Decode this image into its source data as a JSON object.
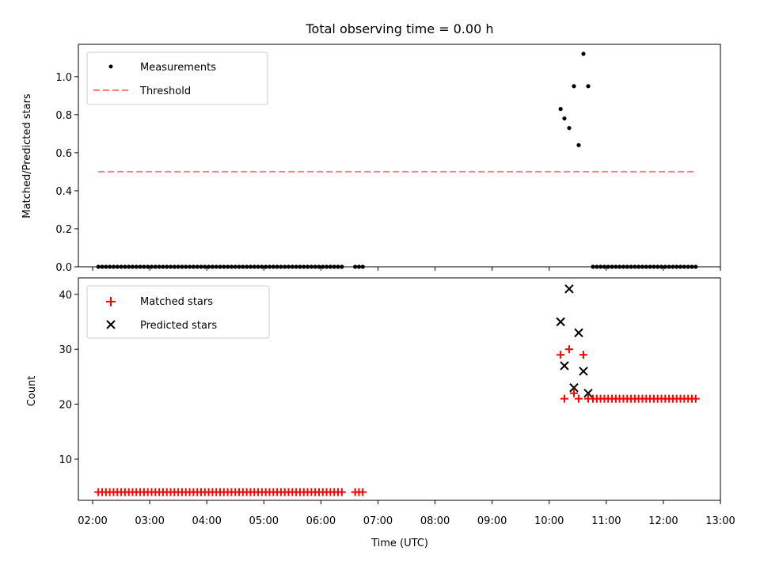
{
  "chart_data": [
    {
      "type": "scatter",
      "title": "Total observing time = 0.00 h",
      "xlabel": "",
      "ylabel": "Matched/Predicted stars",
      "xlim": [
        "01:45",
        "13:00"
      ],
      "ylim": [
        0.0,
        1.17
      ],
      "y_ticks": [
        "0.0",
        "0.2",
        "0.4",
        "0.6",
        "0.8",
        "1.0"
      ],
      "legend_position": "top-left",
      "series": [
        {
          "name": "Measurements",
          "marker": "dot",
          "color": "#000000",
          "points": [
            [
              "02:06",
              0.0
            ],
            [
              "02:10",
              0.0
            ],
            [
              "02:14",
              0.0
            ],
            [
              "02:18",
              0.0
            ],
            [
              "02:22",
              0.0
            ],
            [
              "02:26",
              0.0
            ],
            [
              "02:30",
              0.0
            ],
            [
              "02:34",
              0.0
            ],
            [
              "02:38",
              0.0
            ],
            [
              "02:42",
              0.0
            ],
            [
              "02:46",
              0.0
            ],
            [
              "02:50",
              0.0
            ],
            [
              "02:54",
              0.0
            ],
            [
              "02:58",
              0.0
            ],
            [
              "03:02",
              0.0
            ],
            [
              "03:06",
              0.0
            ],
            [
              "03:10",
              0.0
            ],
            [
              "03:14",
              0.0
            ],
            [
              "03:18",
              0.0
            ],
            [
              "03:22",
              0.0
            ],
            [
              "03:26",
              0.0
            ],
            [
              "03:30",
              0.0
            ],
            [
              "03:34",
              0.0
            ],
            [
              "03:38",
              0.0
            ],
            [
              "03:42",
              0.0
            ],
            [
              "03:46",
              0.0
            ],
            [
              "03:50",
              0.0
            ],
            [
              "03:54",
              0.0
            ],
            [
              "03:58",
              0.0
            ],
            [
              "04:02",
              0.0
            ],
            [
              "04:06",
              0.0
            ],
            [
              "04:10",
              0.0
            ],
            [
              "04:14",
              0.0
            ],
            [
              "04:18",
              0.0
            ],
            [
              "04:22",
              0.0
            ],
            [
              "04:26",
              0.0
            ],
            [
              "04:30",
              0.0
            ],
            [
              "04:34",
              0.0
            ],
            [
              "04:38",
              0.0
            ],
            [
              "04:42",
              0.0
            ],
            [
              "04:46",
              0.0
            ],
            [
              "04:50",
              0.0
            ],
            [
              "04:54",
              0.0
            ],
            [
              "04:58",
              0.0
            ],
            [
              "05:02",
              0.0
            ],
            [
              "05:06",
              0.0
            ],
            [
              "05:10",
              0.0
            ],
            [
              "05:14",
              0.0
            ],
            [
              "05:18",
              0.0
            ],
            [
              "05:22",
              0.0
            ],
            [
              "05:26",
              0.0
            ],
            [
              "05:30",
              0.0
            ],
            [
              "05:34",
              0.0
            ],
            [
              "05:38",
              0.0
            ],
            [
              "05:42",
              0.0
            ],
            [
              "05:46",
              0.0
            ],
            [
              "05:50",
              0.0
            ],
            [
              "05:54",
              0.0
            ],
            [
              "05:58",
              0.0
            ],
            [
              "06:02",
              0.0
            ],
            [
              "06:06",
              0.0
            ],
            [
              "06:10",
              0.0
            ],
            [
              "06:14",
              0.0
            ],
            [
              "06:18",
              0.0
            ],
            [
              "06:22",
              0.0
            ],
            [
              "06:36",
              0.0
            ],
            [
              "06:40",
              0.0
            ],
            [
              "06:44",
              0.0
            ],
            [
              "10:12",
              0.83
            ],
            [
              "10:16",
              0.78
            ],
            [
              "10:21",
              0.73
            ],
            [
              "10:26",
              0.95
            ],
            [
              "10:31",
              0.64
            ],
            [
              "10:36",
              1.12
            ],
            [
              "10:41",
              0.95
            ],
            [
              "10:46",
              0.0
            ],
            [
              "10:50",
              0.0
            ],
            [
              "10:54",
              0.0
            ],
            [
              "10:58",
              0.0
            ],
            [
              "11:02",
              0.0
            ],
            [
              "11:06",
              0.0
            ],
            [
              "11:10",
              0.0
            ],
            [
              "11:14",
              0.0
            ],
            [
              "11:18",
              0.0
            ],
            [
              "11:22",
              0.0
            ],
            [
              "11:26",
              0.0
            ],
            [
              "11:30",
              0.0
            ],
            [
              "11:34",
              0.0
            ],
            [
              "11:38",
              0.0
            ],
            [
              "11:42",
              0.0
            ],
            [
              "11:46",
              0.0
            ],
            [
              "11:50",
              0.0
            ],
            [
              "11:54",
              0.0
            ],
            [
              "11:58",
              0.0
            ],
            [
              "12:02",
              0.0
            ],
            [
              "12:06",
              0.0
            ],
            [
              "12:10",
              0.0
            ],
            [
              "12:14",
              0.0
            ],
            [
              "12:18",
              0.0
            ],
            [
              "12:22",
              0.0
            ],
            [
              "12:26",
              0.0
            ],
            [
              "12:30",
              0.0
            ],
            [
              "12:34",
              0.0
            ]
          ]
        },
        {
          "name": "Threshold",
          "marker": "dashed-line",
          "color": "#ff7f7f",
          "points": [
            [
              "02:06",
              0.5
            ],
            [
              "12:34",
              0.5
            ]
          ]
        }
      ]
    },
    {
      "type": "scatter",
      "title": "",
      "xlabel": "Time (UTC)",
      "ylabel": "Count",
      "xlim": [
        "01:45",
        "13:00"
      ],
      "ylim": [
        2.5,
        43
      ],
      "x_ticks": [
        "02:00",
        "03:00",
        "04:00",
        "05:00",
        "06:00",
        "07:00",
        "08:00",
        "09:00",
        "10:00",
        "11:00",
        "12:00",
        "13:00"
      ],
      "y_ticks": [
        "10",
        "20",
        "30",
        "40"
      ],
      "legend_position": "top-left",
      "series": [
        {
          "name": "Matched stars",
          "marker": "plus",
          "color": "#ff0000",
          "points": [
            [
              "02:06",
              4
            ],
            [
              "02:10",
              4
            ],
            [
              "02:14",
              4
            ],
            [
              "02:18",
              4
            ],
            [
              "02:22",
              4
            ],
            [
              "02:26",
              4
            ],
            [
              "02:30",
              4
            ],
            [
              "02:34",
              4
            ],
            [
              "02:38",
              4
            ],
            [
              "02:42",
              4
            ],
            [
              "02:46",
              4
            ],
            [
              "02:50",
              4
            ],
            [
              "02:54",
              4
            ],
            [
              "02:58",
              4
            ],
            [
              "03:02",
              4
            ],
            [
              "03:06",
              4
            ],
            [
              "03:10",
              4
            ],
            [
              "03:14",
              4
            ],
            [
              "03:18",
              4
            ],
            [
              "03:22",
              4
            ],
            [
              "03:26",
              4
            ],
            [
              "03:30",
              4
            ],
            [
              "03:34",
              4
            ],
            [
              "03:38",
              4
            ],
            [
              "03:42",
              4
            ],
            [
              "03:46",
              4
            ],
            [
              "03:50",
              4
            ],
            [
              "03:54",
              4
            ],
            [
              "03:58",
              4
            ],
            [
              "04:02",
              4
            ],
            [
              "04:06",
              4
            ],
            [
              "04:10",
              4
            ],
            [
              "04:14",
              4
            ],
            [
              "04:18",
              4
            ],
            [
              "04:22",
              4
            ],
            [
              "04:26",
              4
            ],
            [
              "04:30",
              4
            ],
            [
              "04:34",
              4
            ],
            [
              "04:38",
              4
            ],
            [
              "04:42",
              4
            ],
            [
              "04:46",
              4
            ],
            [
              "04:50",
              4
            ],
            [
              "04:54",
              4
            ],
            [
              "04:58",
              4
            ],
            [
              "05:02",
              4
            ],
            [
              "05:06",
              4
            ],
            [
              "05:10",
              4
            ],
            [
              "05:14",
              4
            ],
            [
              "05:18",
              4
            ],
            [
              "05:22",
              4
            ],
            [
              "05:26",
              4
            ],
            [
              "05:30",
              4
            ],
            [
              "05:34",
              4
            ],
            [
              "05:38",
              4
            ],
            [
              "05:42",
              4
            ],
            [
              "05:46",
              4
            ],
            [
              "05:50",
              4
            ],
            [
              "05:54",
              4
            ],
            [
              "05:58",
              4
            ],
            [
              "06:02",
              4
            ],
            [
              "06:06",
              4
            ],
            [
              "06:10",
              4
            ],
            [
              "06:14",
              4
            ],
            [
              "06:18",
              4
            ],
            [
              "06:22",
              4
            ],
            [
              "06:36",
              4
            ],
            [
              "06:40",
              4
            ],
            [
              "06:44",
              4
            ],
            [
              "10:12",
              29
            ],
            [
              "10:16",
              21
            ],
            [
              "10:21",
              30
            ],
            [
              "10:26",
              22
            ],
            [
              "10:31",
              21
            ],
            [
              "10:36",
              29
            ],
            [
              "10:41",
              21
            ],
            [
              "10:46",
              21
            ],
            [
              "10:50",
              21
            ],
            [
              "10:54",
              21
            ],
            [
              "10:58",
              21
            ],
            [
              "11:02",
              21
            ],
            [
              "11:06",
              21
            ],
            [
              "11:10",
              21
            ],
            [
              "11:14",
              21
            ],
            [
              "11:18",
              21
            ],
            [
              "11:22",
              21
            ],
            [
              "11:26",
              21
            ],
            [
              "11:30",
              21
            ],
            [
              "11:34",
              21
            ],
            [
              "11:38",
              21
            ],
            [
              "11:42",
              21
            ],
            [
              "11:46",
              21
            ],
            [
              "11:50",
              21
            ],
            [
              "11:54",
              21
            ],
            [
              "11:58",
              21
            ],
            [
              "12:02",
              21
            ],
            [
              "12:06",
              21
            ],
            [
              "12:10",
              21
            ],
            [
              "12:14",
              21
            ],
            [
              "12:18",
              21
            ],
            [
              "12:22",
              21
            ],
            [
              "12:26",
              21
            ],
            [
              "12:30",
              21
            ],
            [
              "12:34",
              21
            ]
          ]
        },
        {
          "name": "Predicted stars",
          "marker": "x",
          "color": "#000000",
          "points": [
            [
              "10:12",
              35
            ],
            [
              "10:16",
              27
            ],
            [
              "10:21",
              41
            ],
            [
              "10:26",
              23
            ],
            [
              "10:31",
              33
            ],
            [
              "10:36",
              26
            ],
            [
              "10:41",
              22
            ]
          ]
        }
      ]
    }
  ]
}
